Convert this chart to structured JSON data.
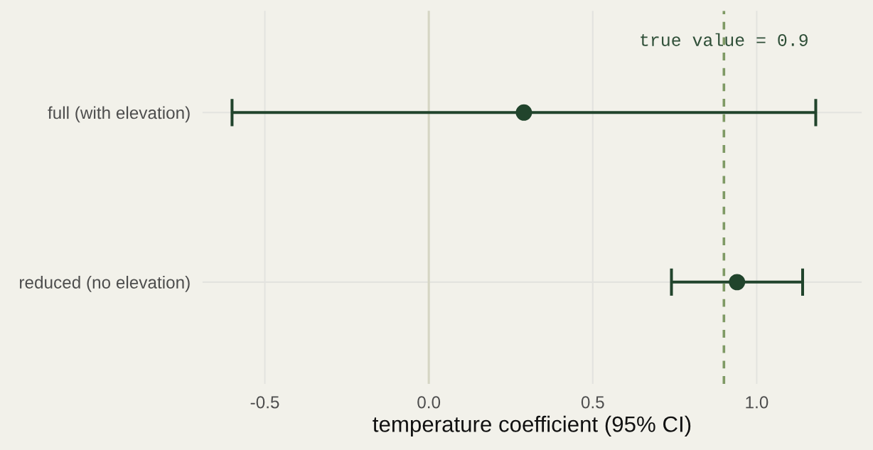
{
  "chart_data": {
    "type": "scatter",
    "orientation": "horizontal",
    "categories": [
      "full (with elevation)",
      "reduced (no elevation)"
    ],
    "values": [
      0.29,
      0.94
    ],
    "errors": [
      [
        -0.6,
        1.18
      ],
      [
        0.74,
        1.14
      ]
    ],
    "color": "#21442c",
    "marker": "circle",
    "xlabel": "temperature coefficient (95% CI)",
    "xlim": [
      -0.69,
      1.32
    ],
    "xticks": [
      -0.5,
      {
        "value": 0,
        "label": "0.0"
      },
      0.5,
      {
        "value": 1,
        "label": "1.0"
      }
    ],
    "grid": true,
    "ref_lines": [
      {
        "axis": "x",
        "value": 0,
        "color": "#d5d5c4",
        "line_style": "solid"
      },
      {
        "axis": "x",
        "value": 0.9,
        "label": "true value = 0.9",
        "color": "#7f9a65",
        "line_style": "dashed"
      }
    ]
  }
}
